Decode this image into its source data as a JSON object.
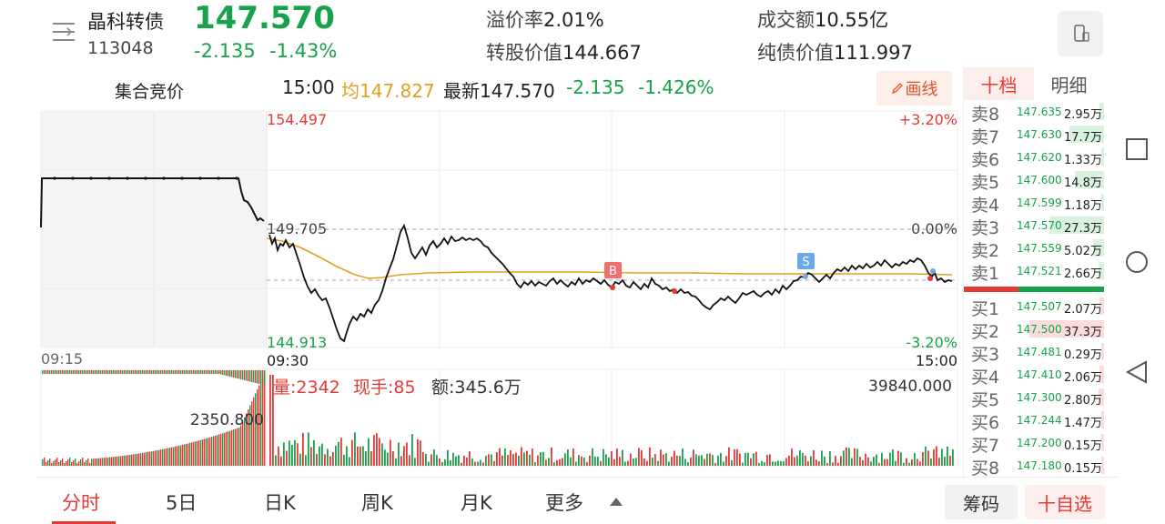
{
  "header": {
    "name": "晶科转债",
    "code": "113048",
    "price": "147.570",
    "change_abs": "-2.135",
    "change_pct": "-1.43%",
    "premium_label": "溢价率",
    "premium_value": "2.01%",
    "conversion_value_label": "转股价值",
    "conversion_value": "144.667",
    "turnover_label": "成交额",
    "turnover_value": "10.55亿",
    "bond_value_label": "纯债价值",
    "bond_value": "111.997"
  },
  "info_bar": {
    "auction_label": "集合竞价",
    "time": "15:00",
    "avg": "均147.827",
    "latest": "最新147.570",
    "change_abs": "-2.135",
    "change_pct": "-1.426%",
    "draw_button": "画线"
  },
  "intraday": {
    "top_price": "154.497",
    "mid_price": "149.705",
    "bottom_price": "144.913",
    "top_pct": "+3.20%",
    "mid_pct": "0.00%",
    "bottom_pct": "-3.20%",
    "time_start_auction": "09:15",
    "time_open": "09:30",
    "time_close": "15:00",
    "marker_buy": "B",
    "marker_sell": "S"
  },
  "volume_panel": {
    "volume_label": "量:2342",
    "current_hand_label": "现手:85",
    "amount_label": "额:345.6万",
    "max_volume": "39840.000",
    "auction_volume": "2350.800"
  },
  "chart_data": {
    "type": "line",
    "title": "",
    "xlabel": "",
    "ylabel": "",
    "x_range": [
      "09:15",
      "15:00"
    ],
    "ylim": [
      144.913,
      154.497
    ],
    "prev_close": 149.705,
    "series": []
  },
  "order_book": {
    "tabs": [
      "十档",
      "明细"
    ],
    "asks": [
      {
        "label": "卖8",
        "price": "147.635",
        "volume": "2.95万",
        "bar": 0.05
      },
      {
        "label": "卖7",
        "price": "147.630",
        "volume": "17.7万",
        "bar": 0.4
      },
      {
        "label": "卖6",
        "price": "147.620",
        "volume": "1.33万",
        "bar": 0.03
      },
      {
        "label": "卖5",
        "price": "147.600",
        "volume": "14.8万",
        "bar": 0.33
      },
      {
        "label": "卖4",
        "price": "147.599",
        "volume": "1.18万",
        "bar": 0.03
      },
      {
        "label": "卖3",
        "price": "147.570",
        "volume": "27.3万",
        "bar": 0.62
      },
      {
        "label": "卖2",
        "price": "147.559",
        "volume": "5.02万",
        "bar": 0.12
      },
      {
        "label": "卖1",
        "price": "147.521",
        "volume": "2.66万",
        "bar": 0.06
      }
    ],
    "bids": [
      {
        "label": "买1",
        "price": "147.507",
        "volume": "2.07万",
        "bar": 0.05
      },
      {
        "label": "买2",
        "price": "147.500",
        "volume": "37.3万",
        "bar": 0.85
      },
      {
        "label": "买3",
        "price": "147.481",
        "volume": "0.29万",
        "bar": 0.01
      },
      {
        "label": "买4",
        "price": "147.410",
        "volume": "2.06万",
        "bar": 0.05
      },
      {
        "label": "买5",
        "price": "147.300",
        "volume": "2.80万",
        "bar": 0.06
      },
      {
        "label": "买6",
        "price": "147.244",
        "volume": "1.47万",
        "bar": 0.03
      },
      {
        "label": "买7",
        "price": "147.200",
        "volume": "0.15万",
        "bar": 0.01
      },
      {
        "label": "买8",
        "price": "147.180",
        "volume": "0.15万",
        "bar": 0.01
      }
    ]
  },
  "bottom_nav": {
    "tabs": [
      "分时",
      "5日",
      "日K",
      "周K",
      "月K",
      "更多"
    ],
    "chip_button": "筹码",
    "add_watchlist": "十自选"
  },
  "colors": {
    "up": "#e53935",
    "down": "#16a34a",
    "avg_line": "#e0a020",
    "price_line": "#111111"
  }
}
